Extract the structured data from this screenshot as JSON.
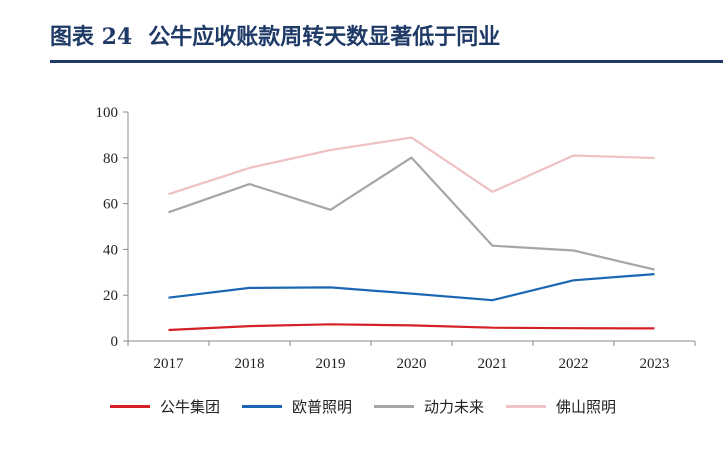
{
  "figure": {
    "label": "图表 24",
    "title": "公牛应收账款周转天数显著低于同业"
  },
  "colors": {
    "title": "#1f3a66",
    "axis": "#888888"
  },
  "chart_data": {
    "type": "line",
    "x": [
      "2017",
      "2018",
      "2019",
      "2020",
      "2021",
      "2022",
      "2023"
    ],
    "ylim": [
      0,
      100
    ],
    "yticks": [
      0,
      20,
      40,
      60,
      80,
      100
    ],
    "grid": false,
    "legend_position": "bottom",
    "series": [
      {
        "name": "公牛集团",
        "color": "#d42027",
        "values": [
          4.8,
          6.5,
          7.3,
          6.8,
          5.8,
          5.6,
          5.5
        ]
      },
      {
        "name": "欧普照明",
        "color": "#1b67b3",
        "values": [
          18.9,
          23.2,
          23.4,
          20.7,
          17.8,
          26.5,
          29.2
        ]
      },
      {
        "name": "动力未来",
        "color": "#a6a6a6",
        "values": [
          56.2,
          68.5,
          57.3,
          80.1,
          41.6,
          39.5,
          31.2
        ]
      },
      {
        "name": "佛山照明",
        "color": "#efc1c5",
        "values": [
          64.1,
          75.6,
          83.4,
          88.8,
          65.1,
          81.0,
          79.9
        ]
      }
    ]
  }
}
